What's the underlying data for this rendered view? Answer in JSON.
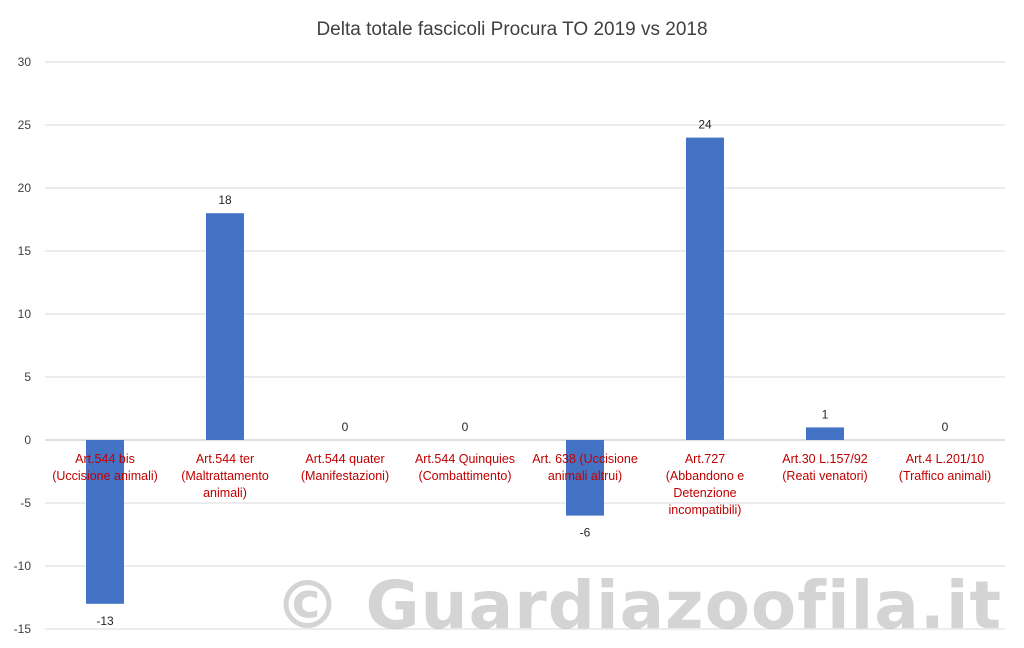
{
  "chart_data": {
    "type": "bar",
    "title": "Delta totale fascicoli Procura TO 2019 vs 2018",
    "categories": [
      "Art.544 bis (Uccisione animali)",
      "Art.544 ter (Maltrattamento animali)",
      "Art.544 quater (Manifestazioni)",
      "Art.544 Quinquies (Combattimento)",
      "Art. 638 (Uccisione animali altrui)",
      "Art.727 (Abbandono e Detenzione incompatibili)",
      "Art.30 L.157/92 (Reati venatori)",
      "Art.4 L.201/10 (Traffico animali)"
    ],
    "category_lines": [
      [
        "Art.544 bis",
        "(Uccisione animali)"
      ],
      [
        "Art.544 ter",
        "(Maltrattamento",
        "animali)"
      ],
      [
        "Art.544 quater",
        "(Manifestazioni)"
      ],
      [
        "Art.544 Quinquies",
        "(Combattimento)"
      ],
      [
        "Art. 638 (Uccisione",
        "animali altrui)"
      ],
      [
        "Art.727",
        "(Abbandono e",
        "Detenzione",
        "incompatibili)"
      ],
      [
        "Art.30 L.157/92",
        "(Reati venatori)"
      ],
      [
        "Art.4 L.201/10",
        "(Traffico animali)"
      ]
    ],
    "values": [
      -13,
      18,
      0,
      0,
      -6,
      24,
      1,
      0
    ],
    "ylim": [
      -15,
      30
    ],
    "yticks": [
      30,
      25,
      20,
      15,
      10,
      5,
      0,
      -5,
      -10,
      -15
    ],
    "grid": true,
    "legend": "none",
    "xlabel": "",
    "ylabel": "",
    "bar_color": "#4472c4",
    "category_label_color": "#c00000"
  },
  "watermark_text": "© Guardiazoofila.it"
}
